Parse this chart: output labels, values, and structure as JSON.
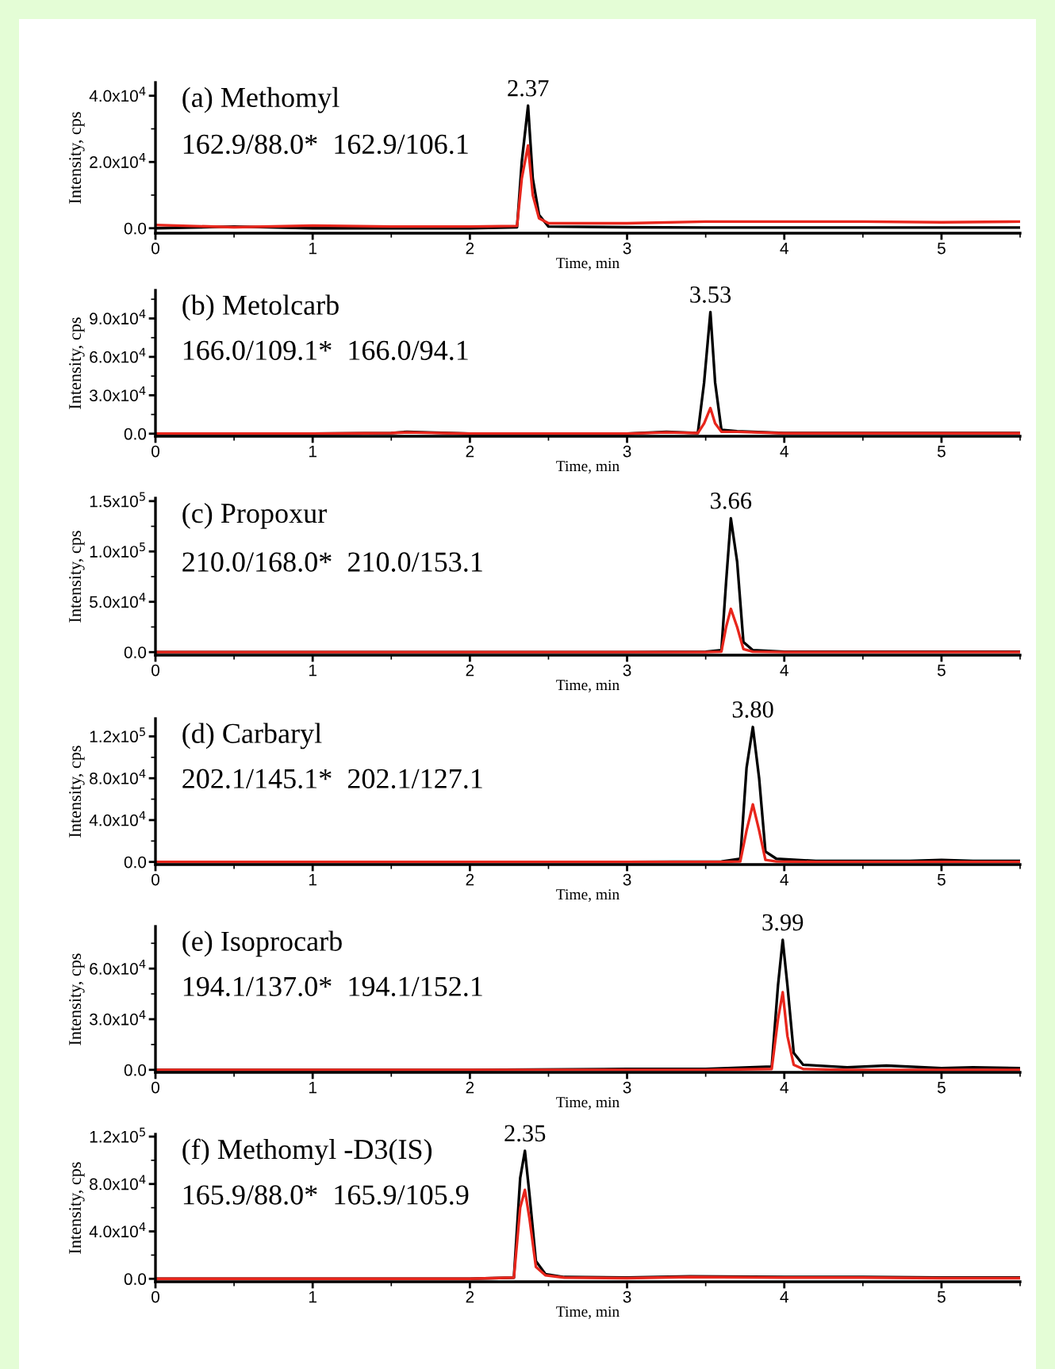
{
  "chart_data": [
    {
      "type": "line",
      "title": "(a) Methomyl",
      "subtitle": "162.9/88.0*  162.9/106.1",
      "xlabel": "Time, min",
      "ylabel": "Intensity, cps",
      "xlim": [
        0,
        5.5
      ],
      "xticks": [
        0,
        1,
        2,
        3,
        4,
        5
      ],
      "ylim": [
        -1500,
        44000
      ],
      "yticks": [
        {
          "value": 0,
          "label": "0.0"
        },
        {
          "value": 20000,
          "label": "2.0x10$^{4}$"
        },
        {
          "value": 40000,
          "label": "4.0x10$^{4}$"
        }
      ],
      "grid": false,
      "legend": false,
      "marker": "none",
      "line_style": "solid",
      "annotations": [
        {
          "text": "2.37",
          "x": 2.37,
          "y": 37000
        }
      ],
      "x": [
        0,
        0.5,
        1,
        1.5,
        2,
        2.3,
        2.33,
        2.37,
        2.4,
        2.44,
        2.5,
        3,
        3.5,
        4,
        4.5,
        5,
        5.5
      ],
      "series": [
        {
          "color": "#000000",
          "values": [
            0,
            500,
            0,
            0,
            0,
            300,
            20000,
            37000,
            15000,
            4000,
            500,
            300,
            200,
            200,
            200,
            200,
            200
          ]
        },
        {
          "color": "#e8261c",
          "values": [
            1000,
            300,
            800,
            500,
            500,
            700,
            15000,
            25000,
            10000,
            3000,
            1500,
            1500,
            2000,
            2000,
            2000,
            1800,
            2000
          ]
        }
      ]
    },
    {
      "type": "line",
      "title": "(b) Metolcarb",
      "subtitle": "166.0/109.1*  166.0/94.1",
      "xlabel": "Time, min",
      "ylabel": "Intensity, cps",
      "xlim": [
        0,
        5.5
      ],
      "xticks": [
        0,
        1,
        2,
        3,
        4,
        5
      ],
      "ylim": [
        -2000,
        112000
      ],
      "yticks": [
        {
          "value": 0,
          "label": "0.0"
        },
        {
          "value": 30000,
          "label": "3.0x10$^{4}$"
        },
        {
          "value": 60000,
          "label": "6.0x10$^{4}$"
        },
        {
          "value": 90000,
          "label": "9.0x10$^{4}$"
        }
      ],
      "grid": false,
      "legend": false,
      "marker": "none",
      "line_style": "solid",
      "annotations": [
        {
          "text": "3.53",
          "x": 3.53,
          "y": 95000
        }
      ],
      "x": [
        0,
        0.5,
        1,
        1.5,
        1.6,
        2,
        2.5,
        3,
        3.25,
        3.45,
        3.49,
        3.53,
        3.56,
        3.6,
        3.7,
        4,
        4.5,
        5,
        5.5
      ],
      "series": [
        {
          "color": "#000000",
          "values": [
            0,
            0,
            0,
            500,
            1500,
            0,
            0,
            0,
            1500,
            500,
            40000,
            95000,
            40000,
            3000,
            2000,
            500,
            500,
            500,
            500
          ]
        },
        {
          "color": "#e8261c",
          "values": [
            0,
            0,
            0,
            500,
            1000,
            0,
            0,
            0,
            1000,
            500,
            8000,
            20000,
            8000,
            1500,
            1500,
            300,
            300,
            300,
            300
          ]
        }
      ]
    },
    {
      "type": "line",
      "title": "(c) Propoxur",
      "subtitle": "210.0/168.0*  210.0/153.1",
      "xlabel": "Time, min",
      "ylabel": "Intensity, cps",
      "xlim": [
        0,
        5.5
      ],
      "xticks": [
        0,
        1,
        2,
        3,
        4,
        5
      ],
      "ylim": [
        -3000,
        153000
      ],
      "yticks": [
        {
          "value": 0,
          "label": "0.0"
        },
        {
          "value": 50000,
          "label": "5.0x10$^{4}$"
        },
        {
          "value": 100000,
          "label": "1.0x10$^{5}$"
        },
        {
          "value": 150000,
          "label": "1.5x10$^{5}$"
        }
      ],
      "grid": false,
      "legend": false,
      "marker": "none",
      "line_style": "solid",
      "annotations": [
        {
          "text": "3.66",
          "x": 3.66,
          "y": 133000
        }
      ],
      "x": [
        0,
        1,
        2,
        3,
        3.5,
        3.6,
        3.63,
        3.66,
        3.7,
        3.74,
        3.8,
        4,
        4.5,
        5,
        5.5
      ],
      "series": [
        {
          "color": "#000000",
          "values": [
            0,
            0,
            0,
            0,
            500,
            2000,
            70000,
            133000,
            90000,
            10000,
            2000,
            500,
            500,
            500,
            500
          ]
        },
        {
          "color": "#e8261c",
          "values": [
            0,
            0,
            0,
            0,
            0,
            500,
            25000,
            43000,
            25000,
            3000,
            500,
            0,
            0,
            0,
            0
          ]
        }
      ]
    },
    {
      "type": "line",
      "title": "(d) Carbaryl",
      "subtitle": "202.1/145.1*  202.1/127.1",
      "xlabel": "Time, min",
      "ylabel": "Intensity, cps",
      "xlim": [
        0,
        5.5
      ],
      "xticks": [
        0,
        1,
        2,
        3,
        4,
        5
      ],
      "ylim": [
        -2500,
        137000
      ],
      "yticks": [
        {
          "value": 0,
          "label": "0.0"
        },
        {
          "value": 40000,
          "label": "4.0x10$^{4}$"
        },
        {
          "value": 80000,
          "label": "8.0x10$^{4}$"
        },
        {
          "value": 120000,
          "label": "1.2x10$^{5}$"
        }
      ],
      "grid": false,
      "legend": false,
      "marker": "none",
      "line_style": "solid",
      "annotations": [
        {
          "text": "3.80",
          "x": 3.8,
          "y": 129000
        }
      ],
      "x": [
        0,
        1,
        2,
        3,
        3.6,
        3.72,
        3.76,
        3.8,
        3.84,
        3.88,
        3.95,
        4.2,
        4.8,
        5,
        5.2,
        5.5
      ],
      "series": [
        {
          "color": "#000000",
          "values": [
            0,
            0,
            0,
            0,
            500,
            3000,
            90000,
            129000,
            80000,
            10000,
            3000,
            1000,
            1000,
            2000,
            1000,
            1000
          ]
        },
        {
          "color": "#e8261c",
          "values": [
            0,
            0,
            0,
            0,
            0,
            500,
            30000,
            55000,
            30000,
            2000,
            500,
            0,
            0,
            0,
            0,
            0
          ]
        }
      ]
    },
    {
      "type": "line",
      "title": "(e) Isoprocarb",
      "subtitle": "194.1/137.0*  194.1/152.1",
      "xlabel": "Time, min",
      "ylabel": "Intensity, cps",
      "xlim": [
        0,
        5.5
      ],
      "xticks": [
        0,
        1,
        2,
        3,
        4,
        5
      ],
      "ylim": [
        -1500,
        85000
      ],
      "yticks": [
        {
          "value": 0,
          "label": "0.0"
        },
        {
          "value": 30000,
          "label": "3.0x10$^{4}$"
        },
        {
          "value": 60000,
          "label": "6.0x10$^{4}$"
        }
      ],
      "grid": false,
      "legend": false,
      "marker": "none",
      "line_style": "solid",
      "annotations": [
        {
          "text": "3.99",
          "x": 3.99,
          "y": 77000
        }
      ],
      "x": [
        0,
        1,
        2,
        3,
        3.5,
        3.92,
        3.96,
        3.99,
        4.02,
        4.06,
        4.12,
        4.4,
        4.65,
        5,
        5.2,
        5.5
      ],
      "series": [
        {
          "color": "#000000",
          "values": [
            0,
            0,
            0,
            500,
            500,
            2000,
            50000,
            77000,
            50000,
            10000,
            3000,
            1500,
            2500,
            1000,
            1500,
            1000
          ]
        },
        {
          "color": "#e8261c",
          "values": [
            0,
            0,
            0,
            0,
            0,
            500,
            30000,
            46000,
            20000,
            3000,
            500,
            0,
            0,
            0,
            0,
            0
          ]
        }
      ]
    },
    {
      "type": "line",
      "title": "(f) Methomyl -D3(IS)",
      "subtitle": "165.9/88.0*  165.9/105.9",
      "xlabel": "Time, min",
      "ylabel": "Intensity, cps",
      "xlim": [
        0,
        5.5
      ],
      "xticks": [
        0,
        1,
        2,
        3,
        4,
        5
      ],
      "ylim": [
        -2500,
        122000
      ],
      "yticks": [
        {
          "value": 0,
          "label": "0.0"
        },
        {
          "value": 40000,
          "label": "4.0x10$^{4}$"
        },
        {
          "value": 80000,
          "label": "8.0x10$^{4}$"
        },
        {
          "value": 120000,
          "label": "1.2x10$^{5}$"
        }
      ],
      "grid": false,
      "legend": false,
      "marker": "none",
      "line_style": "solid",
      "annotations": [
        {
          "text": "2.35",
          "x": 2.35,
          "y": 108000
        }
      ],
      "x": [
        0,
        1,
        2,
        2.28,
        2.32,
        2.35,
        2.38,
        2.42,
        2.48,
        2.6,
        3,
        3.4,
        4,
        4.5,
        5,
        5.5
      ],
      "series": [
        {
          "color": "#000000",
          "values": [
            0,
            0,
            0,
            1000,
            85000,
            108000,
            70000,
            15000,
            4000,
            1500,
            1000,
            2000,
            1500,
            1500,
            1000,
            1000
          ]
        },
        {
          "color": "#e8261c",
          "values": [
            0,
            0,
            0,
            1000,
            60000,
            75000,
            50000,
            10000,
            3000,
            1000,
            500,
            1500,
            1000,
            1000,
            500,
            500
          ]
        }
      ]
    }
  ]
}
